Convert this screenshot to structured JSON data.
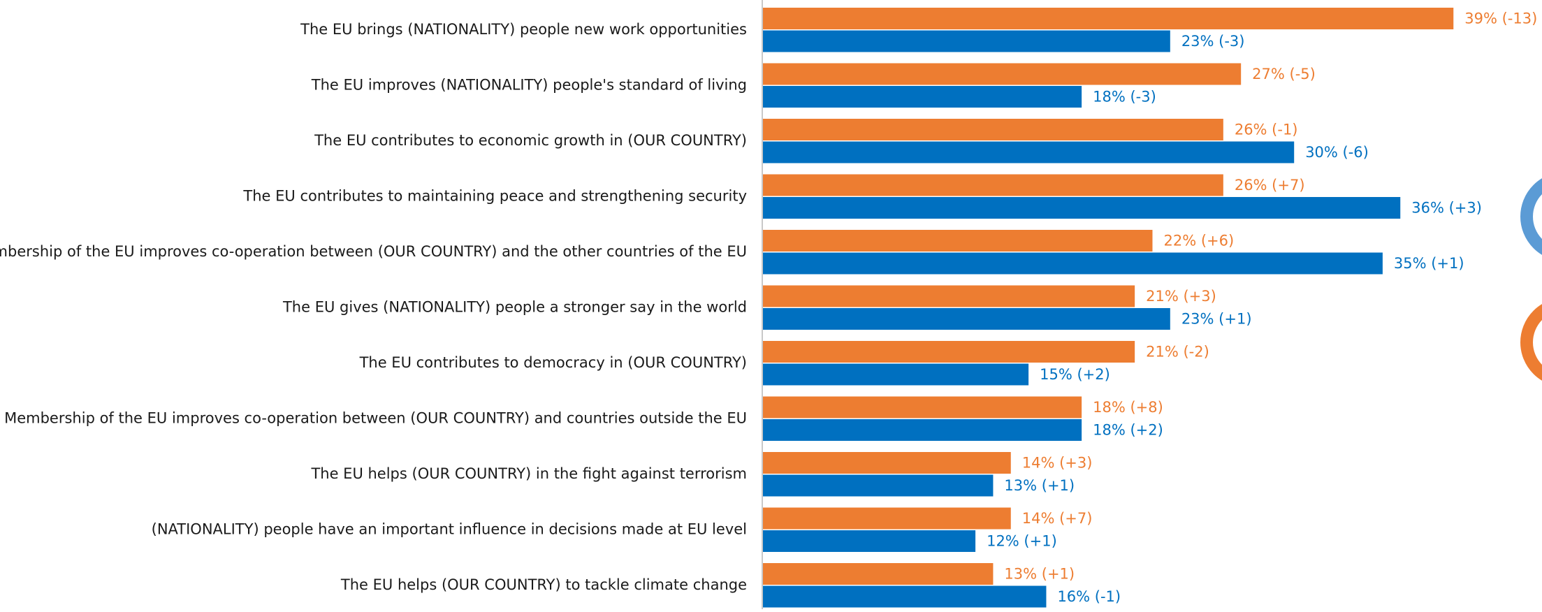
{
  "chart_data": {
    "type": "bar",
    "orientation": "horizontal",
    "categories": [
      "The EU brings (NATIONALITY) people new work opportunities",
      "The EU improves (NATIONALITY) people's standard of living",
      "The EU contributes to economic growth in (OUR COUNTRY)",
      "The EU contributes to maintaining peace and strengthening security",
      "Membership of the EU improves co-operation between (OUR COUNTRY) and the other countries of the EU",
      "The EU gives (NATIONALITY) people a stronger say in the world",
      "The EU contributes to democracy in (OUR COUNTRY)",
      "Membership of the EU improves co-operation between (OUR COUNTRY) and countries outside the EU",
      "The EU helps (OUR COUNTRY) in the fight against terrorism",
      "(NATIONALITY) people have an important influence in decisions made at EU level",
      "The EU helps (OUR COUNTRY) to tackle climate change"
    ],
    "series": [
      {
        "color": "#ed7d31",
        "values": [
          39,
          27,
          26,
          26,
          22,
          21,
          21,
          18,
          14,
          14,
          13
        ],
        "value_labels": [
          "39% (-13)",
          "27% (-5)",
          "26% (-1)",
          "26% (+7)",
          "22% (+6)",
          "21% (+3)",
          "21% (-2)",
          "18% (+8)",
          "14% (+3)",
          "14% (+7)",
          "13% (+1)"
        ]
      },
      {
        "color": "#0070c0",
        "values": [
          23,
          18,
          30,
          36,
          35,
          23,
          15,
          18,
          13,
          12,
          16
        ],
        "value_labels": [
          "23% (-3)",
          "18% (-3)",
          "30% (-6)",
          "36% (+3)",
          "35% (+1)",
          "23% (+1)",
          "15% (+2)",
          "18% (+2)",
          "13% (+1)",
          "12% (+1)",
          "16% (-1)"
        ]
      }
    ]
  }
}
